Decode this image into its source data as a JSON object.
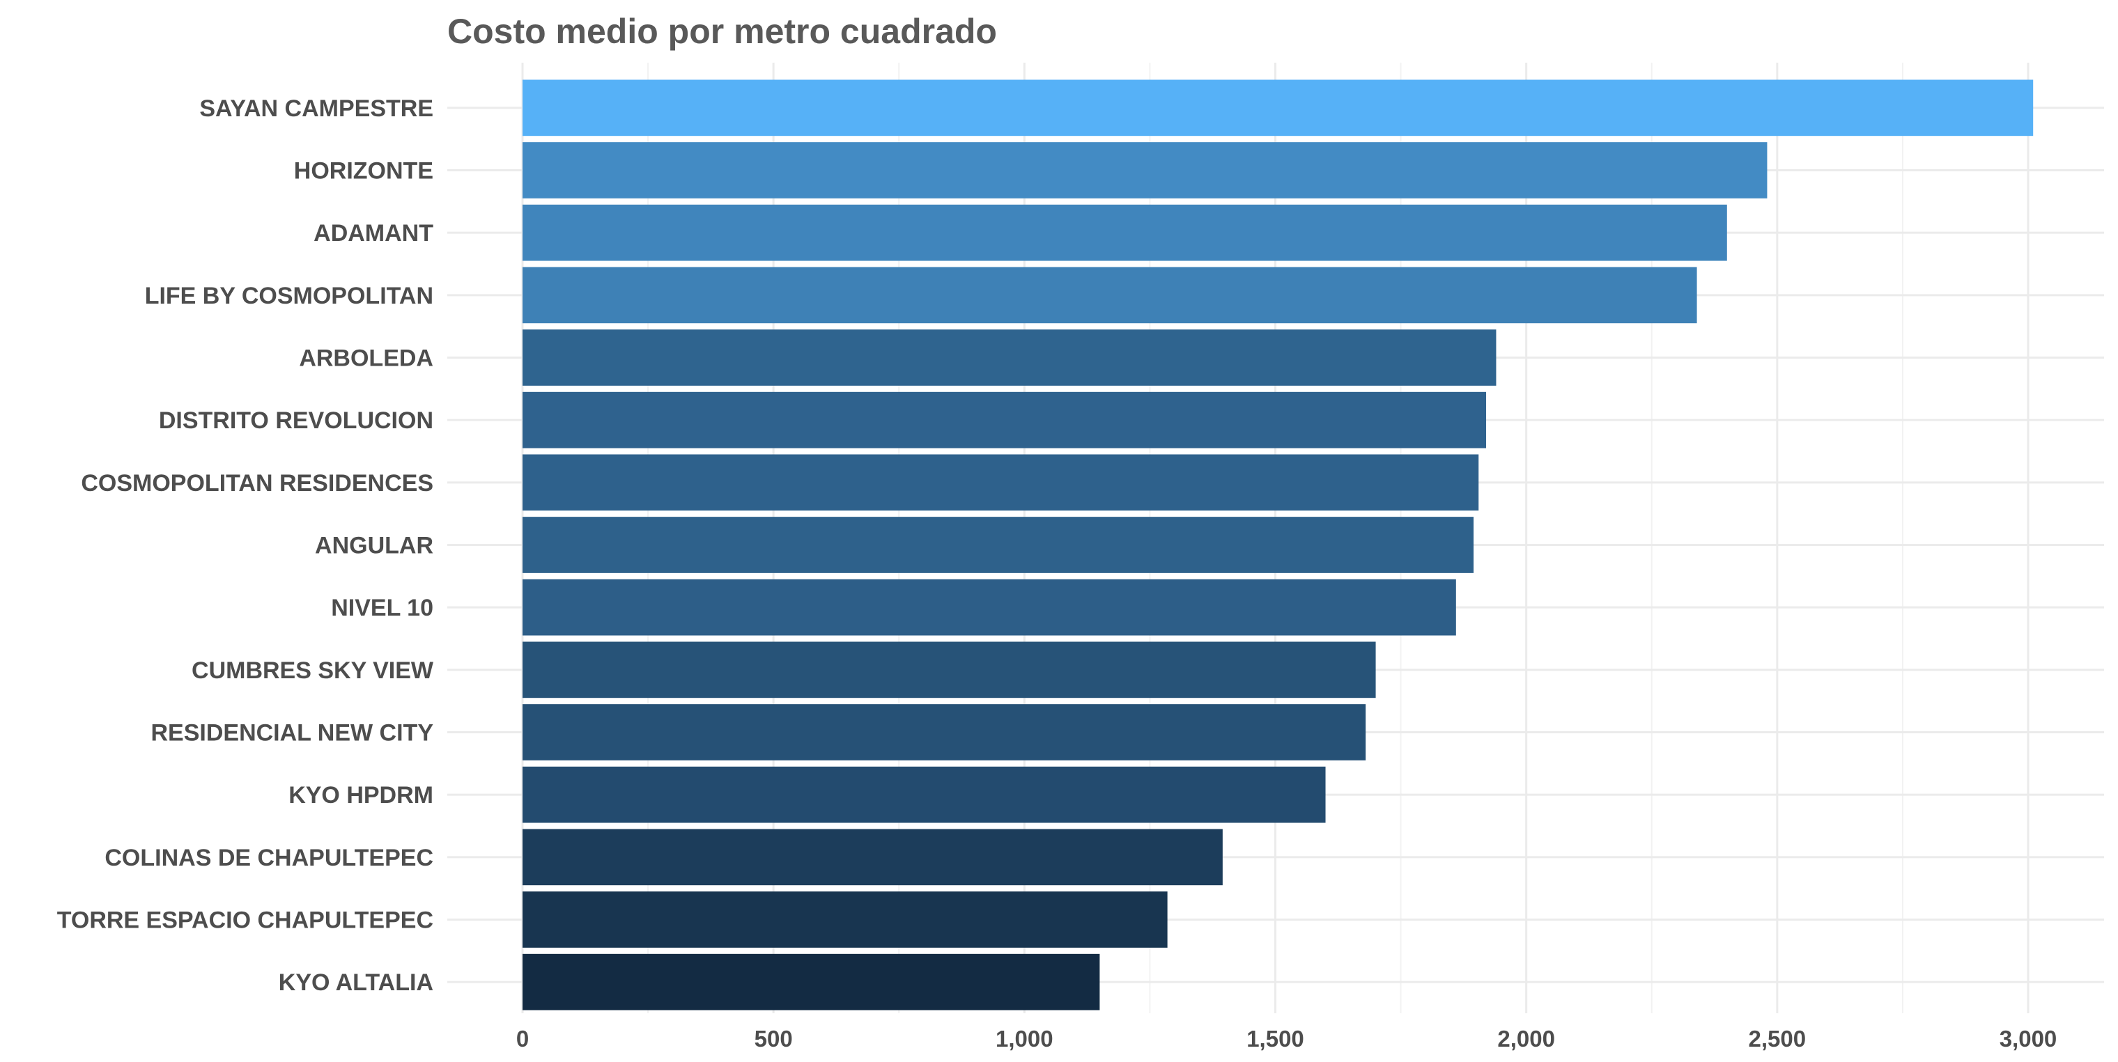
{
  "chart_data": {
    "type": "bar",
    "orientation": "horizontal",
    "title": "Costo medio por metro cuadrado",
    "xlabel": "",
    "ylabel": "",
    "categories": [
      "SAYAN CAMPESTRE",
      "HORIZONTE",
      "ADAMANT",
      "LIFE BY COSMOPOLITAN",
      "ARBOLEDA",
      "DISTRITO REVOLUCION",
      "COSMOPOLITAN RESIDENCES",
      "ANGULAR",
      "NIVEL 10",
      "CUMBRES SKY VIEW",
      "RESIDENCIAL NEW CITY",
      "KYO HPDRM",
      "COLINAS DE CHAPULTEPEC",
      "TORRE ESPACIO CHAPULTEPEC",
      "KYO ALTALIA"
    ],
    "values": [
      3010,
      2480,
      2400,
      2340,
      1940,
      1920,
      1905,
      1895,
      1860,
      1700,
      1680,
      1600,
      1395,
      1285,
      1150
    ],
    "xlim": [
      0,
      3050
    ],
    "x_ticks": [
      0,
      500,
      1000,
      1500,
      2000,
      2500,
      3000
    ],
    "x_tick_labels": [
      "0",
      "500",
      "1,000",
      "1,500",
      "2,000",
      "2,500",
      "3,000"
    ],
    "grid": true,
    "legend": "none",
    "color_scale": {
      "low": "#132b43",
      "high": "#56b1f7"
    }
  }
}
